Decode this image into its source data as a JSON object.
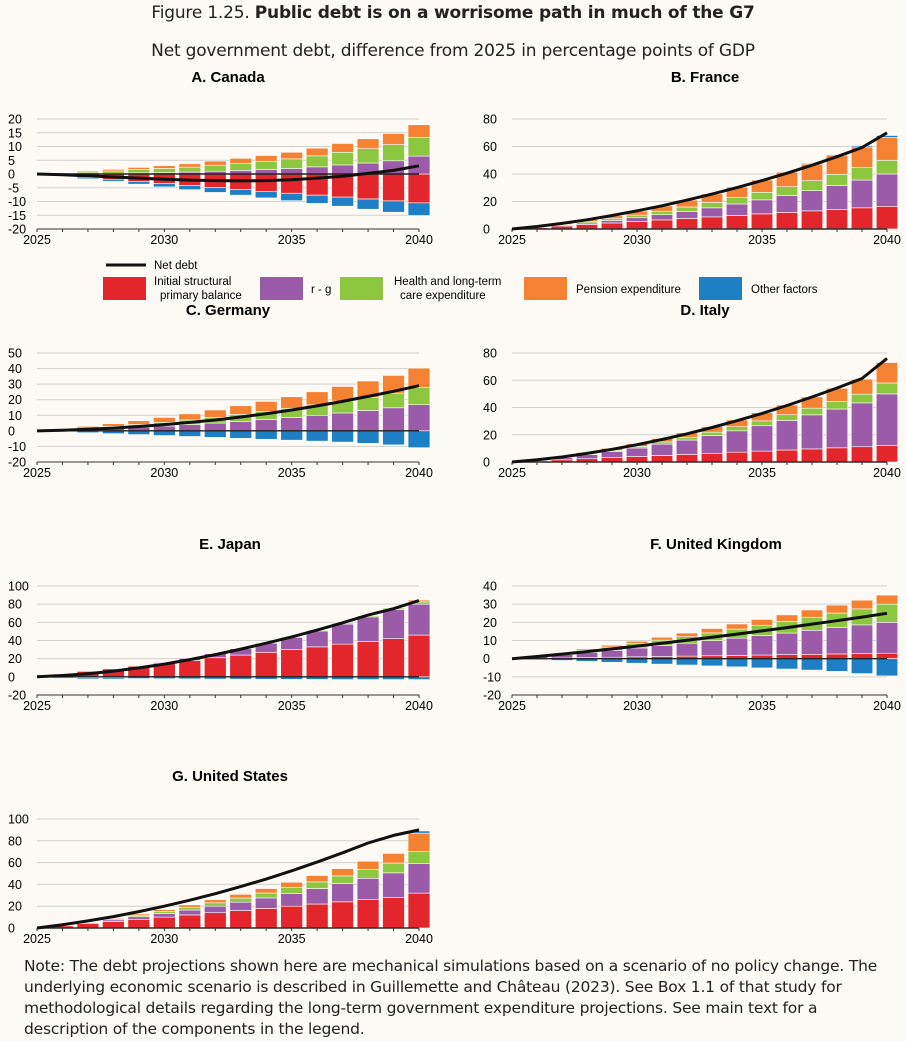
{
  "figure": {
    "label": "Figure 1.25.",
    "title": "Public debt is on a worrisome path in much of the G7",
    "subtitle": "Net government debt, difference from 2025 in percentage points of GDP",
    "note": "Note: The debt projections shown here are mechanical simulations based on a scenario of no policy change. The underlying economic scenario is described in Guillemette and Château (2023). See Box 1.1 of that study for methodological details regarding the long-term government expenditure projections. See main text for a description of the components in the legend."
  },
  "legend": {
    "net_debt": "Net debt",
    "primary_balance": [
      "Initial structural",
      "primary balance"
    ],
    "r_g": "r - g",
    "health": [
      "Health and long-term",
      "care expenditure"
    ],
    "pension": "Pension expenditure",
    "other": "Other factors"
  },
  "colors": {
    "primary_balance": "#e3262b",
    "r_g": "#9b5ba8",
    "health": "#8dc63f",
    "pension": "#f58233",
    "other": "#1f7fc4",
    "net_debt": "#111111",
    "grid": "#d0d0d0"
  },
  "chart_data": [
    {
      "type": "bar",
      "title": "A. Canada",
      "x": [
        2025,
        2026,
        2027,
        2028,
        2029,
        2030,
        2031,
        2032,
        2033,
        2034,
        2035,
        2036,
        2037,
        2038,
        2039,
        2040
      ],
      "xticks": [
        2025,
        2030,
        2035,
        2040
      ],
      "ylim": [
        -20,
        20
      ],
      "yticks": [
        -20,
        -15,
        -10,
        -5,
        0,
        5,
        10,
        15,
        20
      ],
      "series": [
        {
          "name": "Initial structural primary balance",
          "values": [
            0,
            -0.7,
            -1.4,
            -2.1,
            -2.8,
            -3.5,
            -4.2,
            -4.9,
            -5.6,
            -6.3,
            -7,
            -7.7,
            -8.4,
            -9.1,
            -9.8,
            -10.5
          ]
        },
        {
          "name": "r - g",
          "values": [
            0,
            0,
            0.1,
            0.2,
            0.4,
            0.5,
            0.7,
            1,
            1.3,
            1.6,
            2,
            2.6,
            3.3,
            4,
            4.8,
            6.5
          ]
        },
        {
          "name": "Health and long-term care expenditure",
          "values": [
            0,
            0.3,
            0.6,
            0.9,
            1.2,
            1.5,
            1.8,
            2.2,
            2.6,
            3,
            3.5,
            4,
            4.6,
            5.2,
            5.9,
            6.8
          ]
        },
        {
          "name": "Pension expenditure",
          "values": [
            0,
            0.2,
            0.4,
            0.6,
            0.8,
            1,
            1.2,
            1.5,
            1.8,
            2.1,
            2.4,
            2.8,
            3.2,
            3.6,
            4,
            4.6
          ]
        },
        {
          "name": "Other factors",
          "values": [
            0,
            -0.2,
            -0.4,
            -0.6,
            -0.9,
            -1.2,
            -1.5,
            -1.8,
            -2.1,
            -2.4,
            -2.7,
            -3,
            -3.3,
            -3.7,
            -4.1,
            -4.6
          ]
        }
      ],
      "net_debt": [
        0,
        -0.3,
        -0.7,
        -1.1,
        -1.5,
        -1.9,
        -2.2,
        -2.4,
        -2.5,
        -2.4,
        -2.1,
        -1.5,
        -0.8,
        0.2,
        1.3,
        3
      ]
    },
    {
      "type": "bar",
      "title": "B. France",
      "x": [
        2025,
        2026,
        2027,
        2028,
        2029,
        2030,
        2031,
        2032,
        2033,
        2034,
        2035,
        2036,
        2037,
        2038,
        2039,
        2040
      ],
      "xticks": [
        2025,
        2030,
        2035,
        2040
      ],
      "ylim": [
        0,
        80
      ],
      "yticks": [
        0,
        20,
        40,
        60,
        80
      ],
      "series": [
        {
          "name": "Initial structural primary balance",
          "values": [
            0,
            1.1,
            2.2,
            3.3,
            4.4,
            5.5,
            6.6,
            7.7,
            8.8,
            9.9,
            11,
            12.1,
            13.2,
            14.3,
            15.4,
            16.5
          ]
        },
        {
          "name": "r - g",
          "values": [
            0,
            0.2,
            0.6,
            1.1,
            1.8,
            2.7,
            3.8,
            5.1,
            6.6,
            8.3,
            10.2,
            12.3,
            14.7,
            17.3,
            20.2,
            23.5
          ]
        },
        {
          "name": "Health and long-term care expenditure",
          "values": [
            0,
            0.2,
            0.5,
            0.9,
            1.4,
            1.9,
            2.5,
            3.2,
            3.9,
            4.7,
            5.5,
            6.4,
            7.3,
            8.2,
            9.1,
            10
          ]
        },
        {
          "name": "Pension expenditure",
          "values": [
            0,
            0.3,
            0.8,
            1.4,
            2.1,
            3,
            4,
            5.1,
            6.3,
            7.6,
            9,
            10.5,
            12,
            13.5,
            15,
            16.5
          ]
        },
        {
          "name": "Other factors",
          "values": [
            0,
            0,
            0,
            0,
            0.1,
            0.1,
            0.1,
            0.2,
            0.2,
            0.3,
            0.4,
            0.5,
            0.6,
            0.8,
            1,
            1.5
          ]
        }
      ],
      "net_debt": [
        0,
        1.8,
        4.1,
        6.7,
        9.8,
        13.2,
        16.9,
        21,
        25.4,
        30.1,
        35.2,
        40.6,
        46.4,
        52.6,
        59.3,
        70
      ]
    },
    {
      "type": "bar",
      "title": "C. Germany",
      "x": [
        2025,
        2026,
        2027,
        2028,
        2029,
        2030,
        2031,
        2032,
        2033,
        2034,
        2035,
        2036,
        2037,
        2038,
        2039,
        2040
      ],
      "xticks": [
        2025,
        2030,
        2035,
        2040
      ],
      "ylim": [
        -20,
        50
      ],
      "yticks": [
        -20,
        -10,
        0,
        10,
        20,
        30,
        40,
        50
      ],
      "series": [
        {
          "name": "Initial structural primary balance",
          "values": [
            0,
            0,
            0,
            0,
            0,
            0,
            0,
            0,
            0,
            0,
            0,
            0,
            0,
            0,
            0,
            0
          ]
        },
        {
          "name": "r - g",
          "values": [
            0,
            0.5,
            1,
            1.6,
            2.3,
            3.1,
            4,
            5,
            6.1,
            7.3,
            8.6,
            10,
            11.5,
            13.1,
            14.8,
            16.8
          ]
        },
        {
          "name": "Health and long-term care expenditure",
          "values": [
            0,
            0.4,
            0.8,
            1.3,
            1.8,
            2.4,
            3,
            3.7,
            4.4,
            5.1,
            5.9,
            6.7,
            7.6,
            8.5,
            9.4,
            11
          ]
        },
        {
          "name": "Pension expenditure",
          "values": [
            0,
            0.5,
            1.1,
            1.7,
            2.4,
            3.1,
            3.9,
            4.7,
            5.6,
            6.5,
            7.4,
            8.4,
            9.4,
            10.4,
            11.4,
            12.5
          ]
        },
        {
          "name": "Other factors",
          "values": [
            0,
            -0.6,
            -1.2,
            -1.8,
            -2.4,
            -3,
            -3.6,
            -4.2,
            -4.8,
            -5.4,
            -6,
            -6.6,
            -7.2,
            -8,
            -9,
            -10.8
          ]
        }
      ],
      "net_debt": [
        0,
        0.4,
        1,
        1.8,
        2.8,
        4,
        5.4,
        7,
        8.9,
        11,
        13.4,
        16,
        18.9,
        22.1,
        25.4,
        29
      ]
    },
    {
      "type": "bar",
      "title": "D. Italy",
      "x": [
        2025,
        2026,
        2027,
        2028,
        2029,
        2030,
        2031,
        2032,
        2033,
        2034,
        2035,
        2036,
        2037,
        2038,
        2039,
        2040
      ],
      "xticks": [
        2025,
        2030,
        2035,
        2040
      ],
      "ylim": [
        0,
        80
      ],
      "yticks": [
        0,
        20,
        40,
        60,
        80
      ],
      "series": [
        {
          "name": "Initial structural primary balance",
          "values": [
            0,
            0.8,
            1.6,
            2.4,
            3.2,
            4,
            4.8,
            5.6,
            6.4,
            7.2,
            8,
            8.8,
            9.6,
            10.4,
            11.2,
            12
          ]
        },
        {
          "name": "r - g",
          "values": [
            0,
            0.7,
            1.7,
            3,
            4.5,
            6.3,
            8.3,
            10.5,
            13,
            15.7,
            18.6,
            21.7,
            25,
            28.5,
            32.2,
            38
          ]
        },
        {
          "name": "Health and long-term care expenditure",
          "values": [
            0,
            0.2,
            0.4,
            0.6,
            0.9,
            1.2,
            1.6,
            2,
            2.5,
            3,
            3.6,
            4.2,
            4.9,
            5.6,
            6.4,
            8
          ]
        },
        {
          "name": "Pension expenditure",
          "values": [
            0,
            0.3,
            0.6,
            1,
            1.5,
            2,
            2.6,
            3.3,
            4.1,
            5,
            6,
            7.1,
            8.3,
            9.6,
            11,
            15
          ]
        },
        {
          "name": "Other factors",
          "values": [
            0,
            0,
            0,
            0,
            0,
            0,
            0,
            0,
            0,
            0,
            0,
            0,
            0,
            0,
            0,
            0
          ]
        }
      ],
      "net_debt": [
        0,
        1.6,
        3.7,
        6.3,
        9.3,
        12.7,
        16.5,
        20.7,
        25.3,
        30.3,
        35.7,
        41.5,
        47.7,
        54.3,
        61.3,
        76
      ]
    },
    {
      "type": "bar",
      "title": "E. Japan",
      "x": [
        2025,
        2026,
        2027,
        2028,
        2029,
        2030,
        2031,
        2032,
        2033,
        2034,
        2035,
        2036,
        2037,
        2038,
        2039,
        2040
      ],
      "xticks": [
        2025,
        2030,
        2035,
        2040
      ],
      "ylim": [
        -20,
        100
      ],
      "yticks": [
        -20,
        0,
        20,
        40,
        60,
        80,
        100
      ],
      "series": [
        {
          "name": "Initial structural primary balance",
          "values": [
            0,
            3,
            6,
            9,
            12,
            15,
            18,
            21,
            24,
            27,
            30,
            33,
            36,
            39,
            42,
            46
          ]
        },
        {
          "name": "r - g",
          "values": [
            0,
            -0.7,
            -1.1,
            -0.8,
            0,
            1,
            2.5,
            4.5,
            7,
            10,
            13.5,
            17.5,
            22,
            27,
            32,
            34
          ]
        },
        {
          "name": "Health and long-term care expenditure",
          "values": [
            0,
            0,
            0,
            0.1,
            0.1,
            0.2,
            0.3,
            0.4,
            0.5,
            0.6,
            0.8,
            1,
            1.2,
            1.5,
            1.8,
            2.5
          ]
        },
        {
          "name": "Pension expenditure",
          "values": [
            0,
            0,
            0,
            0,
            0,
            0,
            0,
            0,
            0,
            0,
            0,
            0,
            0,
            0.1,
            0.2,
            2
          ]
        },
        {
          "name": "Other factors",
          "values": [
            0,
            -1,
            -1.3,
            -1.6,
            -1.9,
            -2.1,
            -2.3,
            -2.5,
            -2.6,
            -2.7,
            -2.8,
            -2.9,
            -3,
            -3,
            -3,
            -3
          ]
        }
      ],
      "net_debt": [
        0,
        1.5,
        3.5,
        6.3,
        9.8,
        14,
        19,
        24.5,
        30.5,
        37,
        44,
        51.5,
        59.5,
        68,
        75,
        84
      ]
    },
    {
      "type": "bar",
      "title": "F. United Kingdom",
      "x": [
        2025,
        2026,
        2027,
        2028,
        2029,
        2030,
        2031,
        2032,
        2033,
        2034,
        2035,
        2036,
        2037,
        2038,
        2039,
        2040
      ],
      "xticks": [
        2025,
        2030,
        2035,
        2040
      ],
      "ylim": [
        -20,
        40
      ],
      "yticks": [
        -20,
        -10,
        0,
        10,
        20,
        30,
        40
      ],
      "series": [
        {
          "name": "Initial structural primary balance",
          "values": [
            0,
            0.2,
            0.4,
            0.6,
            0.8,
            1,
            1.2,
            1.4,
            1.6,
            1.8,
            2,
            2.2,
            2.4,
            2.6,
            2.8,
            3
          ]
        },
        {
          "name": "r - g",
          "values": [
            0,
            0.9,
            1.8,
            2.8,
            3.8,
            4.9,
            6,
            7.1,
            8.3,
            9.5,
            10.7,
            11.9,
            13.2,
            14.5,
            15.8,
            17
          ]
        },
        {
          "name": "Health and long-term care expenditure",
          "values": [
            0,
            0.4,
            0.8,
            1.3,
            1.8,
            2.4,
            3,
            3.6,
            4.3,
            5,
            5.7,
            6.4,
            7.2,
            8,
            8.8,
            10
          ]
        },
        {
          "name": "Pension expenditure",
          "values": [
            0,
            0.2,
            0.4,
            0.7,
            1,
            1.3,
            1.6,
            2,
            2.4,
            2.8,
            3.2,
            3.6,
            4,
            4.4,
            4.8,
            5
          ]
        },
        {
          "name": "Other factors",
          "values": [
            0,
            -0.5,
            -1,
            -1.5,
            -2,
            -2.5,
            -3,
            -3.5,
            -4,
            -4.5,
            -5.1,
            -5.7,
            -6.3,
            -7,
            -8.2,
            -9.5
          ]
        }
      ],
      "net_debt": [
        0,
        1.2,
        2.5,
        3.9,
        5.4,
        6.9,
        8.5,
        10.1,
        11.8,
        13.5,
        15.3,
        17.1,
        19,
        20.9,
        22.9,
        25
      ]
    },
    {
      "type": "bar",
      "title": "G. United States",
      "x": [
        2025,
        2026,
        2027,
        2028,
        2029,
        2030,
        2031,
        2032,
        2033,
        2034,
        2035,
        2036,
        2037,
        2038,
        2039,
        2040
      ],
      "xticks": [
        2025,
        2030,
        2035,
        2040
      ],
      "ylim": [
        0,
        100
      ],
      "yticks": [
        0,
        20,
        40,
        60,
        80,
        100
      ],
      "series": [
        {
          "name": "Initial structural primary balance",
          "values": [
            0,
            2,
            4,
            6,
            8,
            10,
            12,
            14,
            16,
            18,
            20,
            22,
            24,
            26,
            28,
            32
          ]
        },
        {
          "name": "r - g",
          "values": [
            0,
            0.4,
            0.9,
            1.5,
            2.3,
            3.3,
            4.5,
            6,
            7.7,
            9.6,
            11.8,
            14.2,
            16.8,
            19.6,
            22.6,
            27
          ]
        },
        {
          "name": "Health and long-term care expenditure",
          "values": [
            0,
            0.3,
            0.6,
            1,
            1.4,
            1.9,
            2.5,
            3.1,
            3.8,
            4.5,
            5.3,
            6.1,
            7,
            8,
            9,
            11
          ]
        },
        {
          "name": "Pension expenditure",
          "values": [
            0,
            0.2,
            0.5,
            0.8,
            1.2,
            1.7,
            2.2,
            2.8,
            3.4,
            4.1,
            4.9,
            5.8,
            6.7,
            7.7,
            8.8,
            17
          ]
        },
        {
          "name": "Other factors",
          "values": [
            0,
            0,
            0,
            0,
            0,
            0,
            0,
            0,
            0,
            0,
            0,
            0,
            0,
            0,
            0,
            2
          ]
        }
      ],
      "net_debt": [
        0,
        3,
        6.5,
        10.5,
        15,
        20,
        25.5,
        31.5,
        38,
        45,
        52.5,
        60.5,
        69,
        78,
        85,
        90
      ]
    }
  ]
}
